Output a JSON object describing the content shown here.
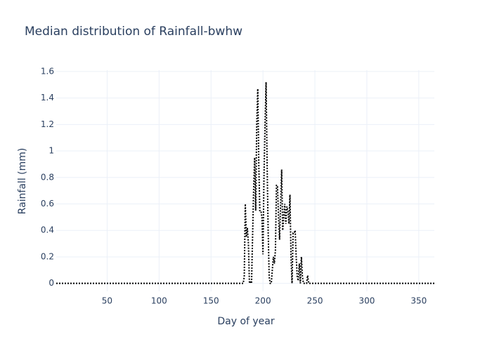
{
  "chart_data": {
    "type": "line",
    "title": "Median distribution of Rainfall-bwhw",
    "x_label": "Day of year",
    "y_label": "Rainfall (mm)",
    "x": [
      1,
      180,
      181,
      182,
      183,
      184,
      185,
      186,
      187,
      188,
      189,
      190,
      191,
      192,
      193,
      194,
      195,
      196,
      197,
      198,
      199,
      200,
      201,
      202,
      203,
      204,
      205,
      206,
      207,
      208,
      209,
      210,
      211,
      212,
      213,
      214,
      215,
      216,
      217,
      218,
      219,
      220,
      221,
      222,
      223,
      224,
      225,
      226,
      227,
      228,
      229,
      230,
      231,
      232,
      233,
      234,
      235,
      236,
      237,
      238,
      239,
      240,
      241,
      242,
      243,
      244,
      245,
      365
    ],
    "values": [
      0,
      0,
      0,
      0.05,
      0.6,
      0.35,
      0.42,
      0.3,
      0,
      0.02,
      0,
      0.35,
      0.7,
      0.95,
      0.55,
      1.2,
      1.47,
      0.9,
      0.55,
      0.55,
      0.5,
      0.22,
      0.8,
      1.2,
      1.52,
      0.9,
      0.4,
      0.05,
      0,
      0,
      0.1,
      0.2,
      0.15,
      0.25,
      0.74,
      0.74,
      0.5,
      0.33,
      0.6,
      0.86,
      0.4,
      0.5,
      0.6,
      0.45,
      0.58,
      0.55,
      0.45,
      0.67,
      0.2,
      0,
      0.38,
      0.38,
      0.4,
      0.2,
      0.05,
      0.02,
      0.15,
      0,
      0.2,
      0.05,
      0,
      0,
      0,
      0,
      0.06,
      0,
      0,
      0
    ],
    "color": "#000000",
    "dash": "dot",
    "xlim": [
      1,
      365
    ],
    "xticks": [
      50,
      100,
      150,
      200,
      250,
      300,
      350
    ],
    "ylim": [
      -0.06,
      1.61
    ],
    "yticks": [
      0,
      0.2,
      0.4,
      0.6,
      0.8,
      1,
      1.2,
      1.4,
      1.6
    ],
    "grid": true
  }
}
